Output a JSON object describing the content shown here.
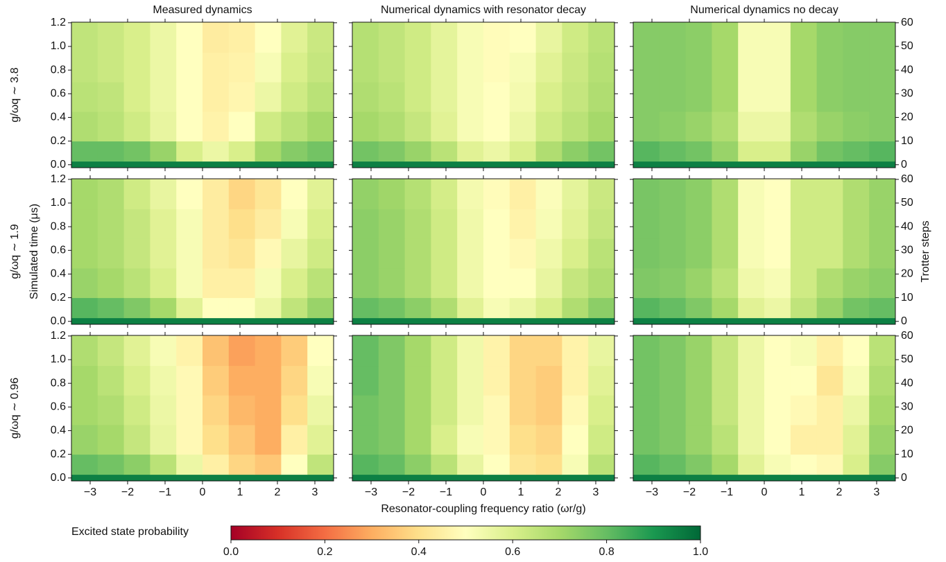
{
  "chart_data": {
    "type": "heatmap-grid",
    "columns": [
      "Measured dynamics",
      "Numerical dynamics with resonator decay",
      "Numerical dynamics no decay"
    ],
    "xlabel": "Resonator-coupling frequency ratio (ωr/g)",
    "ylabel": "Simulated time (μs)",
    "y2label": "Trotter steps",
    "xlim": [
      -3.5,
      3.5
    ],
    "xticks": [
      {
        "value": -3,
        "label": "−3"
      },
      {
        "value": -2,
        "label": "−2"
      },
      {
        "value": -1,
        "label": "−1"
      },
      0,
      1,
      2,
      3
    ],
    "ylim": [
      -0.025,
      1.205
    ],
    "yticks": [
      {
        "value": 0,
        "label": "0.0"
      },
      0.2,
      0.4,
      0.6,
      0.8,
      {
        "value": 1,
        "label": "1.0"
      },
      1.2
    ],
    "y2lim": [
      -1.25,
      60.25
    ],
    "y2ticks": [
      0,
      10,
      20,
      30,
      40,
      50,
      60
    ],
    "xbins": [
      -3.5,
      -2.8,
      -2.1,
      -1.4,
      -0.7,
      0,
      0.7,
      1.4,
      2.1,
      2.8,
      3.5
    ],
    "ybins": [
      -0.025,
      0.03,
      0.2,
      0.45,
      0.7,
      0.95,
      1.205
    ],
    "colormap": [
      "#a50026",
      "#d73027",
      "#f46d43",
      "#fdae61",
      "#fee08b",
      "#ffffbf",
      "#d9ef8b",
      "#a6d96a",
      "#66bd63",
      "#1a9850",
      "#006837"
    ],
    "colorbar": {
      "label": "Excited state probability",
      "lim": [
        0,
        1
      ],
      "ticks": [
        {
          "value": 0,
          "label": "0.0"
        },
        0.2,
        0.4,
        0.6,
        0.8,
        {
          "value": 1,
          "label": "1.0"
        }
      ]
    },
    "rows": [
      {
        "label": "g/ωq ∼ 3.8",
        "panels": [
          {
            "z": [
              [
                0.95,
                0.95,
                0.95,
                0.95,
                0.95,
                0.95,
                0.95,
                0.95,
                0.95,
                0.95
              ],
              [
                0.8,
                0.8,
                0.78,
                0.72,
                0.6,
                0.55,
                0.6,
                0.7,
                0.75,
                0.78
              ],
              [
                0.68,
                0.66,
                0.62,
                0.56,
                0.5,
                0.46,
                0.5,
                0.62,
                0.66,
                0.7
              ],
              [
                0.66,
                0.65,
                0.6,
                0.55,
                0.5,
                0.45,
                0.47,
                0.55,
                0.62,
                0.66
              ],
              [
                0.65,
                0.63,
                0.6,
                0.55,
                0.5,
                0.45,
                0.46,
                0.52,
                0.6,
                0.64
              ],
              [
                0.65,
                0.63,
                0.6,
                0.55,
                0.5,
                0.44,
                0.45,
                0.5,
                0.58,
                0.63
              ]
            ]
          },
          {
            "z": [
              [
                0.95,
                0.95,
                0.95,
                0.95,
                0.95,
                0.95,
                0.95,
                0.95,
                0.95,
                0.95
              ],
              [
                0.78,
                0.76,
                0.72,
                0.66,
                0.58,
                0.55,
                0.6,
                0.68,
                0.74,
                0.78
              ],
              [
                0.7,
                0.68,
                0.64,
                0.58,
                0.52,
                0.5,
                0.55,
                0.62,
                0.66,
                0.7
              ],
              [
                0.68,
                0.66,
                0.62,
                0.57,
                0.52,
                0.5,
                0.53,
                0.6,
                0.64,
                0.68
              ],
              [
                0.67,
                0.65,
                0.62,
                0.57,
                0.52,
                0.49,
                0.52,
                0.58,
                0.63,
                0.67
              ],
              [
                0.67,
                0.65,
                0.62,
                0.57,
                0.52,
                0.49,
                0.5,
                0.56,
                0.62,
                0.66
              ]
            ]
          },
          {
            "z": [
              [
                0.95,
                0.95,
                0.95,
                0.95,
                0.95,
                0.95,
                0.95,
                0.95,
                0.95,
                0.95
              ],
              [
                0.82,
                0.8,
                0.78,
                0.72,
                0.6,
                0.6,
                0.72,
                0.78,
                0.8,
                0.82
              ],
              [
                0.75,
                0.74,
                0.72,
                0.68,
                0.55,
                0.55,
                0.68,
                0.72,
                0.74,
                0.75
              ],
              [
                0.75,
                0.75,
                0.74,
                0.7,
                0.52,
                0.52,
                0.7,
                0.74,
                0.75,
                0.75
              ],
              [
                0.75,
                0.75,
                0.74,
                0.7,
                0.52,
                0.52,
                0.7,
                0.74,
                0.75,
                0.75
              ],
              [
                0.75,
                0.75,
                0.74,
                0.7,
                0.52,
                0.52,
                0.7,
                0.74,
                0.75,
                0.75
              ]
            ]
          }
        ]
      },
      {
        "label": "g/ωq ∼ 1.9",
        "panels": [
          {
            "z": [
              [
                0.95,
                0.95,
                0.95,
                0.95,
                0.95,
                0.95,
                0.95,
                0.95,
                0.95,
                0.95
              ],
              [
                0.82,
                0.8,
                0.76,
                0.7,
                0.58,
                0.5,
                0.5,
                0.55,
                0.65,
                0.72
              ],
              [
                0.72,
                0.7,
                0.66,
                0.6,
                0.52,
                0.45,
                0.45,
                0.52,
                0.6,
                0.66
              ],
              [
                0.7,
                0.68,
                0.64,
                0.58,
                0.52,
                0.44,
                0.42,
                0.48,
                0.56,
                0.62
              ],
              [
                0.7,
                0.68,
                0.64,
                0.58,
                0.52,
                0.44,
                0.4,
                0.44,
                0.52,
                0.6
              ],
              [
                0.7,
                0.68,
                0.62,
                0.56,
                0.5,
                0.44,
                0.38,
                0.42,
                0.5,
                0.58
              ]
            ]
          },
          {
            "z": [
              [
                0.95,
                0.95,
                0.95,
                0.95,
                0.95,
                0.95,
                0.95,
                0.95,
                0.95,
                0.95
              ],
              [
                0.8,
                0.78,
                0.74,
                0.68,
                0.58,
                0.52,
                0.55,
                0.6,
                0.68,
                0.74
              ],
              [
                0.74,
                0.72,
                0.68,
                0.62,
                0.54,
                0.5,
                0.5,
                0.56,
                0.64,
                0.68
              ],
              [
                0.74,
                0.72,
                0.68,
                0.62,
                0.54,
                0.5,
                0.48,
                0.54,
                0.6,
                0.66
              ],
              [
                0.74,
                0.72,
                0.68,
                0.62,
                0.54,
                0.5,
                0.46,
                0.52,
                0.58,
                0.64
              ],
              [
                0.73,
                0.71,
                0.67,
                0.61,
                0.53,
                0.49,
                0.45,
                0.51,
                0.57,
                0.63
              ]
            ]
          },
          {
            "z": [
              [
                0.95,
                0.95,
                0.95,
                0.95,
                0.95,
                0.95,
                0.95,
                0.95,
                0.95,
                0.95
              ],
              [
                0.82,
                0.8,
                0.76,
                0.7,
                0.58,
                0.55,
                0.65,
                0.72,
                0.78,
                0.8
              ],
              [
                0.76,
                0.75,
                0.72,
                0.66,
                0.54,
                0.52,
                0.62,
                0.68,
                0.72,
                0.74
              ],
              [
                0.77,
                0.76,
                0.74,
                0.68,
                0.52,
                0.5,
                0.62,
                0.62,
                0.68,
                0.72
              ],
              [
                0.77,
                0.76,
                0.74,
                0.68,
                0.52,
                0.5,
                0.62,
                0.62,
                0.68,
                0.72
              ],
              [
                0.77,
                0.76,
                0.74,
                0.68,
                0.52,
                0.5,
                0.62,
                0.62,
                0.68,
                0.72
              ]
            ]
          }
        ]
      },
      {
        "label": "g/ωq ∼ 0.96",
        "panels": [
          {
            "z": [
              [
                0.95,
                0.95,
                0.95,
                0.95,
                0.95,
                0.95,
                0.95,
                0.95,
                0.95,
                0.95
              ],
              [
                0.8,
                0.78,
                0.74,
                0.66,
                0.55,
                0.45,
                0.38,
                0.35,
                0.5,
                0.65
              ],
              [
                0.72,
                0.7,
                0.64,
                0.56,
                0.48,
                0.4,
                0.35,
                0.3,
                0.45,
                0.58
              ],
              [
                0.7,
                0.68,
                0.62,
                0.55,
                0.48,
                0.38,
                0.32,
                0.3,
                0.4,
                0.55
              ],
              [
                0.7,
                0.66,
                0.6,
                0.54,
                0.48,
                0.36,
                0.3,
                0.3,
                0.38,
                0.52
              ],
              [
                0.68,
                0.64,
                0.58,
                0.52,
                0.46,
                0.34,
                0.28,
                0.3,
                0.36,
                0.5
              ]
            ]
          },
          {
            "z": [
              [
                0.95,
                0.95,
                0.95,
                0.95,
                0.95,
                0.95,
                0.95,
                0.95,
                0.95,
                0.95
              ],
              [
                0.82,
                0.8,
                0.74,
                0.66,
                0.56,
                0.5,
                0.42,
                0.4,
                0.52,
                0.66
              ],
              [
                0.78,
                0.76,
                0.7,
                0.6,
                0.52,
                0.48,
                0.4,
                0.38,
                0.5,
                0.62
              ],
              [
                0.78,
                0.76,
                0.7,
                0.62,
                0.54,
                0.48,
                0.38,
                0.36,
                0.48,
                0.6
              ],
              [
                0.8,
                0.76,
                0.7,
                0.62,
                0.54,
                0.46,
                0.38,
                0.36,
                0.46,
                0.58
              ],
              [
                0.8,
                0.76,
                0.7,
                0.62,
                0.54,
                0.46,
                0.38,
                0.38,
                0.46,
                0.56
              ]
            ]
          },
          {
            "z": [
              [
                0.95,
                0.95,
                0.95,
                0.95,
                0.95,
                0.95,
                0.95,
                0.95,
                0.95,
                0.95
              ],
              [
                0.82,
                0.8,
                0.76,
                0.7,
                0.58,
                0.52,
                0.5,
                0.48,
                0.6,
                0.75
              ],
              [
                0.78,
                0.76,
                0.72,
                0.66,
                0.55,
                0.5,
                0.45,
                0.45,
                0.58,
                0.72
              ],
              [
                0.78,
                0.76,
                0.72,
                0.64,
                0.55,
                0.5,
                0.48,
                0.45,
                0.55,
                0.7
              ],
              [
                0.78,
                0.76,
                0.72,
                0.64,
                0.55,
                0.5,
                0.5,
                0.42,
                0.52,
                0.68
              ],
              [
                0.78,
                0.76,
                0.72,
                0.64,
                0.55,
                0.5,
                0.52,
                0.45,
                0.5,
                0.66
              ]
            ]
          }
        ]
      }
    ]
  }
}
